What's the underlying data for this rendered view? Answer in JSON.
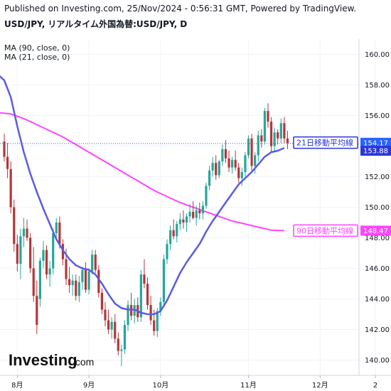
{
  "header": {
    "published": "Published on Investing.com, 25/Nov/2024 - 0:56:31 GMT, Powered by TradingView.",
    "symbol": "USD/JPY, リアルタイム外国為替:USD/JPY, D"
  },
  "legend": {
    "ma90": "MA (90, close, 0)",
    "ma21": "MA (21, close, 0)"
  },
  "logo": {
    "brand": "Investing",
    "suffix": ".com"
  },
  "colors": {
    "up": "#26a69a",
    "down": "#b2373a",
    "ma21": "#5b5be5",
    "ma90": "#ff44ff",
    "last_price_line": "#2962ff",
    "ma21_tag": "#2b36d8",
    "price_tag": "#2962ff"
  },
  "chart_data": {
    "type": "candlestick",
    "y_axis": {
      "min": 139.0,
      "max": 161.0,
      "ticks": [
        "140.00",
        "142.00",
        "144.00",
        "146.00",
        "148.00",
        "150.00",
        "152.00",
        "154.00",
        "156.00",
        "158.00",
        "160.00"
      ]
    },
    "x_axis": {
      "labels": [
        {
          "label": "8月",
          "index": 4
        },
        {
          "label": "9月",
          "index": 26
        },
        {
          "label": "10月",
          "index": 48
        },
        {
          "label": "11月",
          "index": 75
        },
        {
          "label": "12月",
          "index": 97
        },
        {
          "label": "2",
          "index": 114
        }
      ]
    },
    "candles": [
      [
        154.3,
        154.8,
        153.0,
        153.3
      ],
      [
        153.3,
        154.2,
        151.9,
        152.5
      ],
      [
        152.5,
        153.0,
        149.6,
        150.0
      ],
      [
        150.0,
        150.5,
        147.1,
        147.6
      ],
      [
        147.6,
        148.2,
        145.8,
        146.3
      ],
      [
        146.3,
        148.6,
        145.3,
        148.1
      ],
      [
        148.1,
        149.3,
        147.4,
        148.6
      ],
      [
        148.6,
        149.2,
        147.8,
        148.0
      ],
      [
        148.0,
        148.3,
        145.7,
        146.0
      ],
      [
        146.0,
        147.4,
        143.8,
        144.2
      ],
      [
        144.2,
        145.2,
        141.7,
        142.3
      ],
      [
        144.0,
        146.7,
        143.5,
        146.5
      ],
      [
        146.5,
        147.8,
        146.0,
        147.2
      ],
      [
        147.2,
        147.5,
        145.3,
        145.6
      ],
      [
        145.6,
        146.5,
        144.8,
        146.0
      ],
      [
        146.0,
        148.6,
        145.6,
        148.3
      ],
      [
        148.3,
        149.3,
        147.9,
        149.0
      ],
      [
        149.0,
        149.4,
        147.3,
        147.6
      ],
      [
        147.6,
        147.9,
        146.2,
        146.6
      ],
      [
        146.6,
        147.3,
        144.9,
        145.3
      ],
      [
        145.3,
        146.1,
        144.4,
        144.9
      ],
      [
        144.9,
        145.6,
        144.2,
        145.2
      ],
      [
        145.2,
        145.6,
        143.9,
        144.2
      ],
      [
        144.2,
        145.5,
        143.8,
        145.1
      ],
      [
        145.1,
        146.1,
        144.6,
        145.9
      ],
      [
        145.9,
        146.4,
        144.4,
        144.6
      ],
      [
        144.6,
        146.0,
        144.3,
        145.8
      ],
      [
        145.8,
        147.2,
        145.6,
        146.9
      ],
      [
        146.9,
        147.2,
        145.7,
        145.9
      ],
      [
        145.9,
        146.2,
        144.1,
        144.4
      ],
      [
        144.4,
        144.7,
        143.0,
        143.3
      ],
      [
        143.3,
        143.8,
        142.2,
        142.6
      ],
      [
        142.6,
        143.3,
        141.7,
        142.0
      ],
      [
        142.0,
        142.8,
        141.4,
        142.5
      ],
      [
        142.5,
        143.0,
        141.1,
        141.4
      ],
      [
        141.4,
        141.8,
        140.3,
        140.6
      ],
      [
        140.6,
        141.0,
        139.6,
        140.7
      ],
      [
        140.7,
        142.6,
        140.4,
        142.3
      ],
      [
        142.3,
        143.9,
        141.9,
        143.6
      ],
      [
        143.6,
        144.4,
        142.6,
        142.9
      ],
      [
        142.9,
        144.0,
        142.4,
        143.6
      ],
      [
        143.6,
        144.1,
        142.5,
        142.8
      ],
      [
        142.8,
        145.9,
        142.5,
        145.6
      ],
      [
        145.6,
        146.6,
        144.7,
        145.0
      ],
      [
        145.0,
        145.4,
        143.3,
        143.6
      ],
      [
        143.6,
        144.2,
        142.3,
        142.6
      ],
      [
        142.6,
        143.3,
        141.6,
        141.9
      ],
      [
        141.9,
        143.4,
        141.5,
        143.2
      ],
      [
        143.2,
        144.1,
        142.9,
        143.8
      ],
      [
        143.8,
        146.9,
        143.5,
        146.6
      ],
      [
        146.6,
        147.9,
        146.3,
        147.6
      ],
      [
        147.6,
        148.8,
        147.2,
        148.5
      ],
      [
        148.5,
        149.2,
        147.9,
        148.1
      ],
      [
        148.1,
        149.1,
        147.7,
        148.9
      ],
      [
        148.9,
        149.6,
        148.5,
        149.2
      ],
      [
        149.2,
        149.8,
        148.6,
        149.0
      ],
      [
        149.0,
        149.6,
        148.4,
        149.4
      ],
      [
        149.4,
        150.2,
        149.0,
        149.7
      ],
      [
        149.7,
        150.4,
        149.2,
        149.3
      ],
      [
        149.3,
        150.1,
        148.8,
        149.8
      ],
      [
        149.8,
        150.3,
        149.2,
        149.6
      ],
      [
        149.6,
        150.4,
        149.2,
        150.1
      ],
      [
        150.1,
        151.6,
        149.9,
        151.4
      ],
      [
        151.4,
        152.7,
        151.1,
        152.4
      ],
      [
        152.4,
        153.3,
        152.0,
        152.9
      ],
      [
        152.9,
        153.4,
        151.8,
        152.1
      ],
      [
        152.1,
        153.1,
        151.9,
        153.0
      ],
      [
        153.0,
        154.1,
        152.7,
        153.8
      ],
      [
        153.8,
        154.4,
        152.9,
        153.2
      ],
      [
        153.2,
        153.7,
        152.3,
        152.6
      ],
      [
        152.6,
        153.3,
        152.2,
        153.1
      ],
      [
        153.1,
        153.7,
        152.4,
        152.6
      ],
      [
        152.6,
        152.9,
        151.6,
        151.9
      ],
      [
        151.9,
        152.6,
        151.4,
        152.3
      ],
      [
        152.3,
        153.6,
        152.0,
        153.4
      ],
      [
        153.4,
        154.7,
        153.2,
        154.5
      ],
      [
        154.5,
        154.8,
        152.4,
        152.7
      ],
      [
        152.7,
        153.6,
        152.2,
        153.4
      ],
      [
        153.4,
        155.0,
        153.0,
        154.7
      ],
      [
        154.7,
        155.1,
        153.9,
        154.3
      ],
      [
        154.3,
        156.5,
        154.1,
        156.3
      ],
      [
        156.3,
        156.8,
        155.2,
        155.6
      ],
      [
        155.6,
        155.9,
        153.6,
        154.0
      ],
      [
        154.0,
        155.2,
        153.7,
        154.9
      ],
      [
        154.9,
        155.1,
        154.1,
        154.5
      ],
      [
        154.5,
        155.8,
        154.2,
        155.5
      ],
      [
        155.5,
        155.9,
        154.2,
        154.5
      ],
      [
        154.5,
        155.0,
        153.8,
        154.2
      ]
    ],
    "ma21": [
      [
        -2,
        158.7
      ],
      [
        0,
        158.3
      ],
      [
        2,
        157.2
      ],
      [
        4,
        155.3
      ],
      [
        6,
        153.6
      ],
      [
        8,
        152.2
      ],
      [
        10,
        151.0
      ],
      [
        12,
        149.9
      ],
      [
        14,
        148.9
      ],
      [
        16,
        147.9
      ],
      [
        18,
        147.2
      ],
      [
        20,
        146.6
      ],
      [
        22,
        146.2
      ],
      [
        24,
        146.0
      ],
      [
        26,
        145.9
      ],
      [
        28,
        145.6
      ],
      [
        30,
        145.0
      ],
      [
        32,
        144.3
      ],
      [
        34,
        143.7
      ],
      [
        36,
        143.4
      ],
      [
        38,
        143.3
      ],
      [
        40,
        143.3
      ],
      [
        42,
        143.1
      ],
      [
        44,
        143.0
      ],
      [
        46,
        143.0
      ],
      [
        48,
        143.2
      ],
      [
        50,
        143.9
      ],
      [
        52,
        144.8
      ],
      [
        54,
        145.7
      ],
      [
        56,
        146.4
      ],
      [
        58,
        147.0
      ],
      [
        60,
        147.6
      ],
      [
        62,
        148.4
      ],
      [
        64,
        149.1
      ],
      [
        66,
        149.7
      ],
      [
        68,
        150.3
      ],
      [
        70,
        150.9
      ],
      [
        72,
        151.5
      ],
      [
        74,
        151.9
      ],
      [
        76,
        152.3
      ],
      [
        78,
        152.8
      ],
      [
        80,
        153.3
      ],
      [
        82,
        153.6
      ],
      [
        84,
        153.7
      ],
      [
        86,
        153.88
      ]
    ],
    "ma90": [
      [
        -2,
        156.2
      ],
      [
        2,
        156.1
      ],
      [
        6,
        155.8
      ],
      [
        10,
        155.4
      ],
      [
        14,
        155.0
      ],
      [
        18,
        154.6
      ],
      [
        22,
        154.1
      ],
      [
        26,
        153.6
      ],
      [
        30,
        153.1
      ],
      [
        34,
        152.6
      ],
      [
        38,
        152.1
      ],
      [
        42,
        151.6
      ],
      [
        46,
        151.1
      ],
      [
        50,
        150.7
      ],
      [
        54,
        150.3
      ],
      [
        58,
        150.0
      ],
      [
        62,
        149.7
      ],
      [
        66,
        149.4
      ],
      [
        70,
        149.1
      ],
      [
        74,
        148.9
      ],
      [
        78,
        148.7
      ],
      [
        82,
        148.5
      ],
      [
        86,
        148.47
      ]
    ],
    "current_price": 154.17,
    "price_tags": [
      {
        "label": "154.17",
        "value": 154.17,
        "kind": "price"
      },
      {
        "label": "153.88",
        "value": 153.88,
        "kind": "ma21"
      },
      {
        "label": "148.47",
        "value": 148.47,
        "kind": "ma90"
      }
    ],
    "annotations": [
      {
        "text": "21日移動平均線",
        "value": 153.95,
        "kind": "ma21"
      },
      {
        "text": "90日移動平均線",
        "value": 148.47,
        "kind": "ma90"
      }
    ]
  }
}
